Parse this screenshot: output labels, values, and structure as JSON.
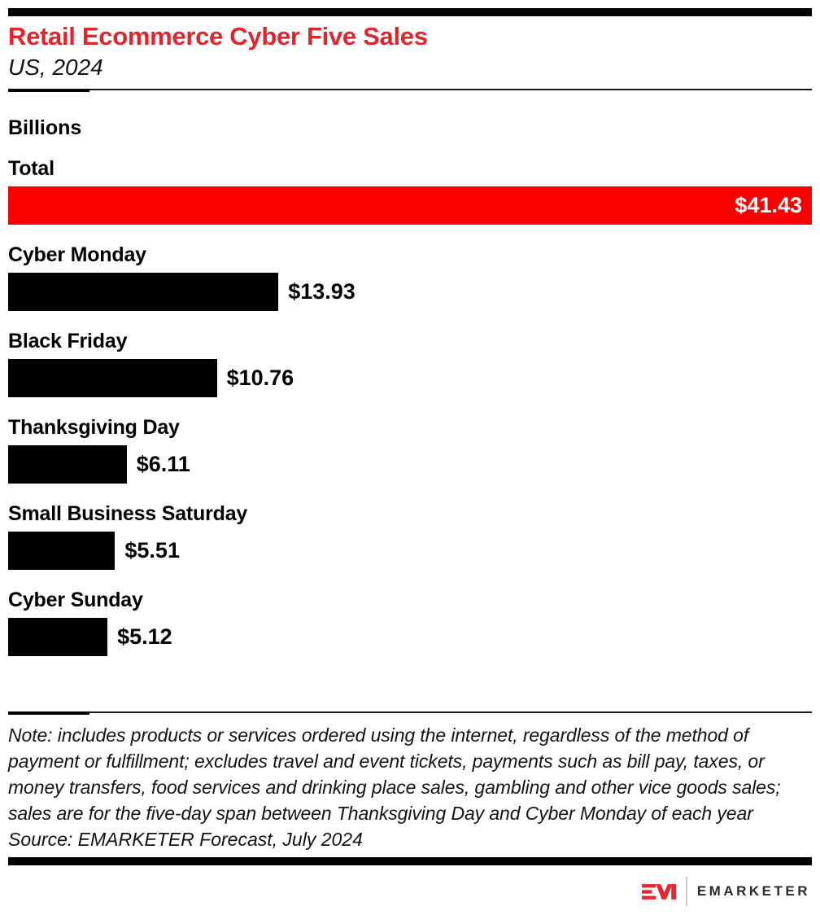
{
  "header": {
    "title": "Retail Ecommerce Cyber Five Sales",
    "subtitle": "US, 2024"
  },
  "chart_data": {
    "type": "bar",
    "orientation": "horizontal",
    "title": "Retail Ecommerce Cyber Five Sales",
    "subtitle": "US, 2024",
    "unit_label": "Billions",
    "currency": "USD",
    "xlim": [
      0,
      41.43
    ],
    "grid": false,
    "legend": "none",
    "categories": [
      "Total",
      "Cyber Monday",
      "Black Friday",
      "Thanksgiving Day",
      "Small Business Saturday",
      "Cyber Sunday"
    ],
    "values": [
      41.43,
      13.93,
      10.76,
      6.11,
      5.51,
      5.12
    ],
    "rows": [
      {
        "label": "Total",
        "value": 41.43,
        "display_value": "$41.43",
        "color": "#fa0000",
        "value_position": "inside"
      },
      {
        "label": "Cyber Monday",
        "value": 13.93,
        "display_value": "$13.93",
        "color": "#000000",
        "value_position": "outside"
      },
      {
        "label": "Black Friday",
        "value": 10.76,
        "display_value": "$10.76",
        "color": "#000000",
        "value_position": "outside"
      },
      {
        "label": "Thanksgiving Day",
        "value": 6.11,
        "display_value": "$6.11",
        "color": "#000000",
        "value_position": "outside"
      },
      {
        "label": "Small Business Saturday",
        "value": 5.51,
        "display_value": "$5.51",
        "color": "#000000",
        "value_position": "outside"
      },
      {
        "label": "Cyber Sunday",
        "value": 5.12,
        "display_value": "$5.12",
        "color": "#000000",
        "value_position": "outside"
      }
    ]
  },
  "footnote": {
    "note": "Note: includes products or services ordered using the internet, regardless of the method of payment or fulfillment; excludes travel and event tickets, payments such as bill pay, taxes, or money transfers, food services and drinking place sales, gambling and other vice goods sales; sales are for the five-day span between Thanksgiving Day and Cyber Monday of each year",
    "source": "Source: EMARKETER Forecast, July 2024"
  },
  "footer": {
    "monogram": "EM",
    "brand": "EMARKETER"
  },
  "colors": {
    "title_red": "#e2242d",
    "bar_red": "#fa0000",
    "bar_black": "#000000",
    "logo_red": "#e8262d"
  }
}
